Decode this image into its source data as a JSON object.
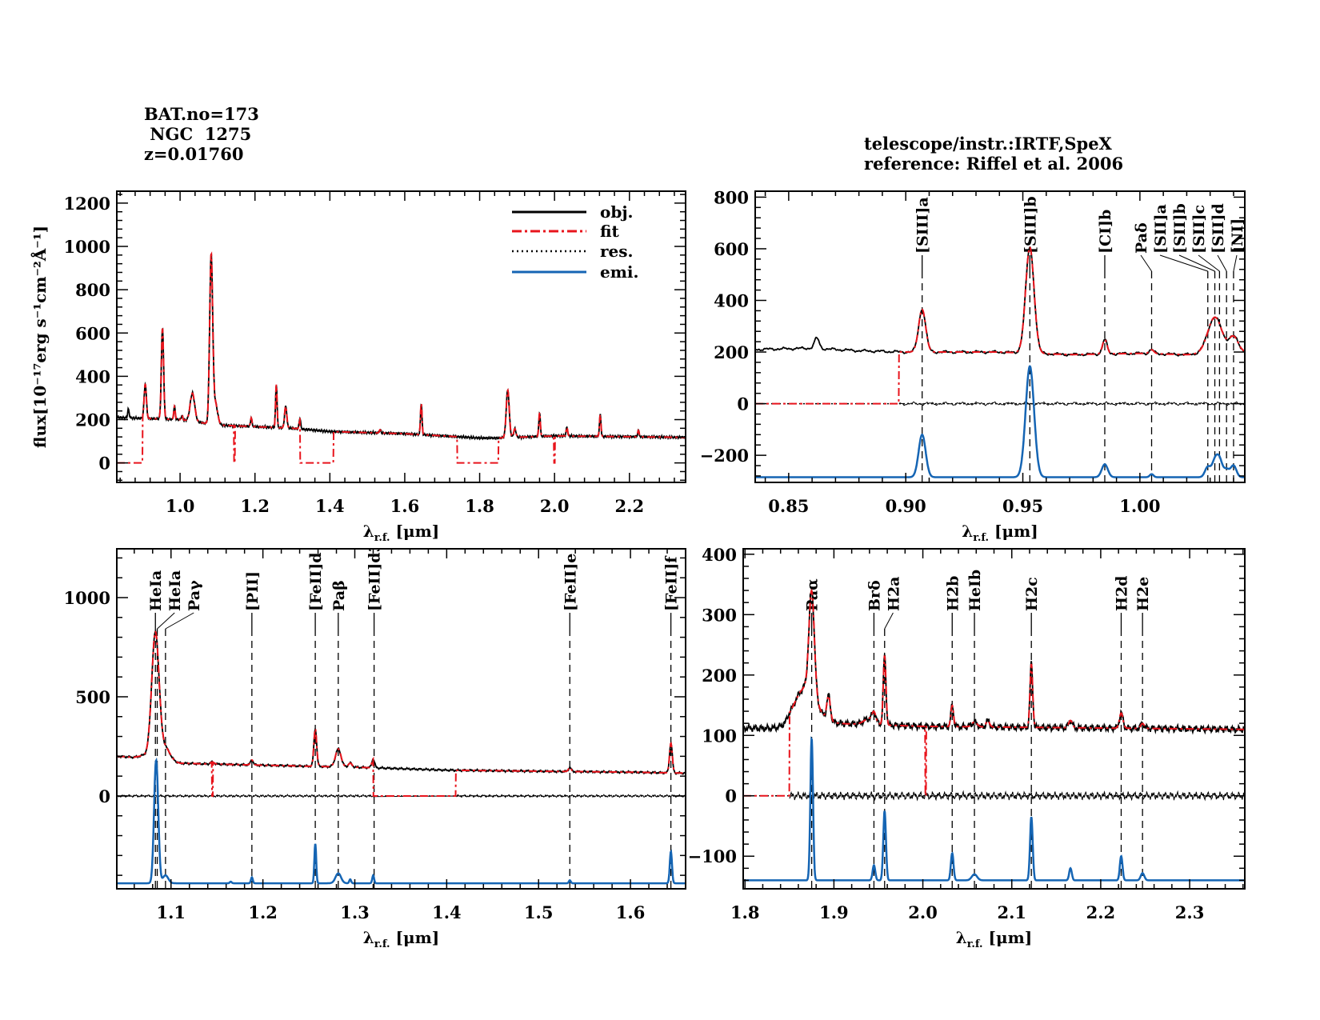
{
  "header_left": [
    "BAT.no=173",
    " NGC  1275",
    "z=0.01760"
  ],
  "header_right": [
    "telescope/instr.:IRTF,SpeX",
    "reference: Riffel et al. 2006"
  ],
  "ylabel": "flux[10⁻¹⁷erg s⁻¹cm⁻²Å⁻¹]",
  "xlabel": {
    "symbol": "λ",
    "sub": "r.f.",
    "unit": " [μm]"
  },
  "legend": [
    {
      "label": "obj.",
      "style": "solid",
      "color": "#000000"
    },
    {
      "label": "fit",
      "style": "dashdot",
      "color": "#e8141c"
    },
    {
      "label": "res.",
      "style": "dotted",
      "color": "#000000"
    },
    {
      "label": "emi.",
      "style": "solid",
      "color": "#1565b4"
    }
  ],
  "colors": {
    "obj": "#000000",
    "fit": "#e8141c",
    "res": "#000000",
    "emi": "#1565b4"
  },
  "chart_data": [
    {
      "type": "line",
      "id": "overview",
      "xlim": [
        0.831,
        2.35
      ],
      "ylim": [
        -90,
        1255
      ],
      "xticks": [
        1.0,
        1.2,
        1.4,
        1.6,
        1.8,
        2.0,
        2.2
      ],
      "xtick_labels": [
        "1.0",
        "1.2",
        "1.4",
        "1.6",
        "1.8",
        "2.0",
        "2.2"
      ],
      "yticks": [
        0,
        200,
        400,
        600,
        800,
        1000,
        1200
      ],
      "ytick_labels": [
        "0",
        "200",
        "400",
        "600",
        "800",
        "1000",
        "1200"
      ],
      "continuum": {
        "x": [
          0.831,
          1.0,
          1.1,
          1.3,
          1.4,
          1.6,
          1.8,
          1.85,
          2.0,
          2.35
        ],
        "y": [
          210,
          200,
          175,
          160,
          145,
          135,
          115,
          115,
          125,
          118
        ]
      },
      "lines": [
        [
          0.862,
          40,
          0.002
        ],
        [
          0.907,
          160,
          0.003
        ],
        [
          0.953,
          420,
          0.003
        ],
        [
          0.985,
          60,
          0.002
        ],
        [
          1.005,
          20,
          0.002
        ],
        [
          1.033,
          130,
          0.006
        ],
        [
          1.083,
          770,
          0.004
        ],
        [
          1.094,
          100,
          0.006
        ],
        [
          1.19,
          40,
          0.002
        ],
        [
          1.257,
          200,
          0.002
        ],
        [
          1.282,
          100,
          0.003
        ],
        [
          1.32,
          50,
          0.002
        ],
        [
          1.534,
          15,
          0.002
        ],
        [
          1.644,
          145,
          0.002
        ],
        [
          1.875,
          220,
          0.004
        ],
        [
          1.894,
          40,
          0.003
        ],
        [
          1.96,
          110,
          0.002
        ],
        [
          2.033,
          40,
          0.002
        ],
        [
          2.122,
          100,
          0.002
        ],
        [
          2.224,
          30,
          0.002
        ]
      ],
      "fit_zero": [
        [
          0.831,
          0.9
        ],
        [
          1.32,
          1.41
        ],
        [
          1.74,
          1.85
        ]
      ],
      "fit_spikes": [
        1.145,
        2.0
      ],
      "show_residual": false,
      "show_emission": false,
      "markers": []
    },
    {
      "type": "line",
      "id": "zoom-0.85-1.04",
      "xlim": [
        0.8357,
        1.0448
      ],
      "ylim": [
        -305,
        823
      ],
      "xticks": [
        0.85,
        0.9,
        0.95,
        1.0
      ],
      "xtick_labels": [
        "0.85",
        "0.90",
        "0.95",
        "1.00"
      ],
      "yticks": [
        -200,
        0,
        200,
        400,
        600,
        800
      ],
      "ytick_labels": [
        "−200",
        "0",
        "200",
        "400",
        "600",
        "800"
      ],
      "continuum": {
        "x": [
          0.8357,
          0.86,
          0.88,
          0.9,
          0.94,
          0.97,
          1.0,
          1.02,
          1.0448
        ],
        "y": [
          210,
          215,
          205,
          200,
          200,
          190,
          195,
          190,
          200
        ]
      },
      "lines": [
        [
          0.862,
          40,
          0.001
        ],
        [
          0.907,
          165,
          0.0015
        ],
        [
          0.953,
          410,
          0.0018
        ],
        [
          0.985,
          55,
          0.001
        ],
        [
          1.005,
          15,
          0.001
        ],
        [
          1.032,
          140,
          0.003
        ],
        [
          1.04,
          60,
          0.002
        ]
      ],
      "fit_zero": [
        [
          0.8357,
          0.897
        ]
      ],
      "fit_spikes": [],
      "show_residual": true,
      "show_emission": true,
      "emission_baseline": -285,
      "emission": [
        [
          0.907,
          165,
          0.0015
        ],
        [
          0.953,
          430,
          0.0018
        ],
        [
          0.985,
          50,
          0.0013
        ],
        [
          1.005,
          12,
          0.0008
        ],
        [
          1.029,
          40,
          0.0012
        ],
        [
          1.032,
          60,
          0.0012
        ],
        [
          1.034,
          65,
          0.0012
        ],
        [
          1.037,
          30,
          0.0012
        ],
        [
          1.04,
          45,
          0.0012
        ]
      ],
      "markers": [
        {
          "label": "[SIII]a",
          "x": 0.907
        },
        {
          "label": "[SIII]b",
          "x": 0.953
        },
        {
          "label": "[CI]b",
          "x": 0.985
        },
        {
          "label": "Paδ",
          "x": 1.005
        },
        {
          "label": "[SII]a",
          "x": 1.029
        },
        {
          "label": "[SII]b",
          "x": 1.032
        },
        {
          "label": "[SII]c",
          "x": 1.034
        },
        {
          "label": "[SII]d",
          "x": 1.037
        },
        {
          "label": "[NI]",
          "x": 1.04
        }
      ]
    },
    {
      "type": "line",
      "id": "zoom-1.05-1.66",
      "xlim": [
        1.041,
        1.66
      ],
      "ylim": [
        -468,
        1246
      ],
      "xticks": [
        1.1,
        1.2,
        1.3,
        1.4,
        1.5,
        1.6
      ],
      "xtick_labels": [
        "1.1",
        "1.2",
        "1.3",
        "1.4",
        "1.5",
        "1.6"
      ],
      "yticks": [
        0,
        500,
        1000
      ],
      "ytick_labels": [
        "0",
        "500",
        "1000"
      ],
      "continuum": {
        "x": [
          1.041,
          1.06,
          1.07,
          1.11,
          1.2,
          1.3,
          1.4,
          1.6,
          1.66
        ],
        "y": [
          200,
          195,
          205,
          165,
          155,
          145,
          130,
          120,
          115
        ]
      },
      "lines": [
        [
          1.083,
          630,
          0.004
        ],
        [
          1.094,
          60,
          0.005
        ],
        [
          1.145,
          10,
          0.002
        ],
        [
          1.188,
          25,
          0.0015
        ],
        [
          1.257,
          190,
          0.0015
        ],
        [
          1.282,
          90,
          0.003
        ],
        [
          1.295,
          20,
          0.002
        ],
        [
          1.32,
          45,
          0.0015
        ],
        [
          1.534,
          20,
          0.0015
        ],
        [
          1.644,
          150,
          0.0015
        ]
      ],
      "fit_zero": [
        [
          1.32,
          1.41
        ]
      ],
      "fit_spikes": [
        1.145
      ],
      "show_residual": true,
      "show_emission": true,
      "emission_baseline": -440,
      "emission": [
        [
          1.083,
          400,
          0.002
        ],
        [
          1.085,
          300,
          0.002
        ],
        [
          1.094,
          40,
          0.003
        ],
        [
          1.165,
          8,
          0.001
        ],
        [
          1.188,
          30,
          0.001
        ],
        [
          1.257,
          200,
          0.001
        ],
        [
          1.282,
          50,
          0.003
        ],
        [
          1.295,
          20,
          0.001
        ],
        [
          1.32,
          40,
          0.001
        ],
        [
          1.534,
          15,
          0.001
        ],
        [
          1.644,
          160,
          0.0012
        ]
      ],
      "markers": [
        {
          "label": "HeIa",
          "x": 1.083
        },
        {
          "label": "HeIa",
          "x": 1.085
        },
        {
          "label": "Paγ",
          "x": 1.094
        },
        {
          "label": "[PII]",
          "x": 1.188
        },
        {
          "label": "[FeII]d",
          "x": 1.257
        },
        {
          "label": "Paβ",
          "x": 1.282
        },
        {
          "label": "[FeII]d3",
          "x": 1.321
        },
        {
          "label": "[FeII]e",
          "x": 1.534
        },
        {
          "label": "[FeII]f",
          "x": 1.644
        }
      ]
    },
    {
      "type": "line",
      "id": "zoom-1.8-2.35",
      "xlim": [
        1.798,
        2.362
      ],
      "ylim": [
        -154,
        409
      ],
      "xticks": [
        1.8,
        1.9,
        2.0,
        2.1,
        2.2,
        2.3
      ],
      "xtick_labels": [
        "1.8",
        "1.9",
        "2.0",
        "2.1",
        "2.2",
        "2.3"
      ],
      "yticks": [
        -100,
        0,
        100,
        200,
        300,
        400
      ],
      "ytick_labels": [
        "−100",
        "0",
        "100",
        "200",
        "300",
        "400"
      ],
      "continuum": {
        "x": [
          1.798,
          1.845,
          1.85,
          1.9,
          2.0,
          2.362
        ],
        "y": [
          112,
          112,
          118,
          120,
          115,
          110
        ]
      },
      "lines": [
        [
          1.868,
          60,
          0.012
        ],
        [
          1.875,
          170,
          0.003
        ],
        [
          1.894,
          40,
          0.002
        ],
        [
          1.94,
          10,
          0.006
        ],
        [
          1.945,
          15,
          0.002
        ],
        [
          1.957,
          115,
          0.0015
        ],
        [
          2.033,
          35,
          0.0015
        ],
        [
          2.058,
          8,
          0.003
        ],
        [
          2.073,
          10,
          0.002
        ],
        [
          2.122,
          105,
          0.0015
        ],
        [
          2.166,
          12,
          0.002
        ],
        [
          2.223,
          25,
          0.002
        ],
        [
          2.247,
          8,
          0.002
        ]
      ],
      "fit_zero": [
        [
          1.798,
          1.85
        ]
      ],
      "fit_spikes": [
        2.003
      ],
      "show_residual": true,
      "show_emission": true,
      "emission_baseline": -140,
      "emission": [
        [
          1.875,
          235,
          0.0015
        ],
        [
          1.945,
          25,
          0.0015
        ],
        [
          1.957,
          115,
          0.0015
        ],
        [
          2.033,
          45,
          0.0015
        ],
        [
          2.058,
          10,
          0.003
        ],
        [
          2.122,
          105,
          0.0015
        ],
        [
          2.166,
          20,
          0.0015
        ],
        [
          2.223,
          40,
          0.0015
        ],
        [
          2.247,
          12,
          0.002
        ]
      ],
      "markers": [
        {
          "label": "Paα",
          "x": 1.875
        },
        {
          "label": "Brδ",
          "x": 1.945
        },
        {
          "label": "H2a",
          "x": 1.957
        },
        {
          "label": "H2b",
          "x": 2.033
        },
        {
          "label": "HeIb",
          "x": 2.058
        },
        {
          "label": "H2c",
          "x": 2.122
        },
        {
          "label": "H2d",
          "x": 2.223
        },
        {
          "label": "H2e",
          "x": 2.247
        }
      ]
    }
  ]
}
